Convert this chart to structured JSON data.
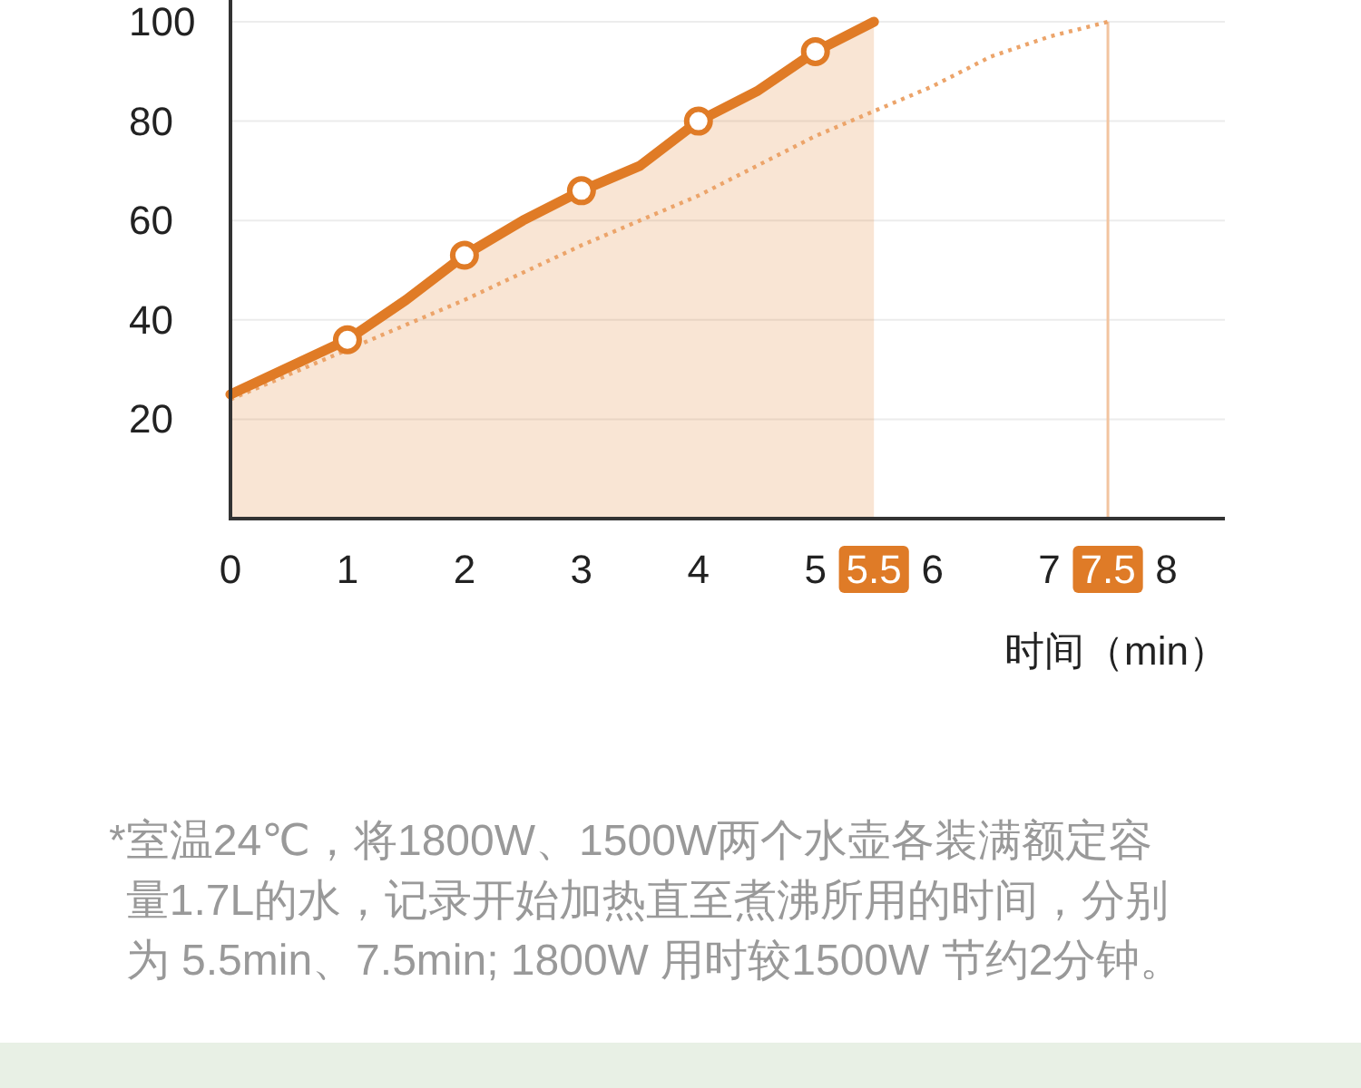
{
  "chart_data": {
    "type": "line",
    "xlabel": "时间（min）",
    "xlim": [
      0,
      8.5
    ],
    "xticks": [
      0,
      1,
      2,
      3,
      4,
      5,
      5.5,
      6,
      7,
      7.5,
      8
    ],
    "ylim": [
      0,
      100
    ],
    "yticks": [
      20,
      40,
      60,
      80,
      100
    ],
    "grid": "y",
    "series": [
      {
        "line_style": "dotted",
        "color": "#eca46a",
        "x": [
          0,
          1,
          2,
          3,
          4,
          5,
          5.5,
          6,
          6.5,
          7,
          7.5
        ],
        "values": [
          24,
          34,
          44,
          55,
          65,
          77,
          82,
          87,
          93,
          97,
          100
        ]
      },
      {
        "type": "area",
        "color": "#e07b26",
        "x": [
          0,
          1,
          1.5,
          2,
          2.5,
          3,
          3.5,
          4,
          4.5,
          5,
          5.5
        ],
        "values": [
          25,
          36,
          44,
          53,
          60,
          66,
          71,
          80,
          86,
          94,
          100
        ]
      },
      {
        "type": "scatter",
        "marker": "circle",
        "color": "#e07b26",
        "x": [
          1,
          2,
          3,
          4,
          5
        ],
        "values": [
          36,
          53,
          66,
          80,
          94
        ]
      }
    ],
    "ref_lines": [
      {
        "axis": "x",
        "value": 7.5,
        "color": "#f2c4a0"
      }
    ],
    "annotations": [
      "*室温24℃，将1800W、1500W两个水壶各装满额定容量1.7L的水，记录开始加热直至煮沸所用的时间，分别为 5.5min、7.5min; 1800W 用时较1500W 节约2分钟。"
    ]
  }
}
